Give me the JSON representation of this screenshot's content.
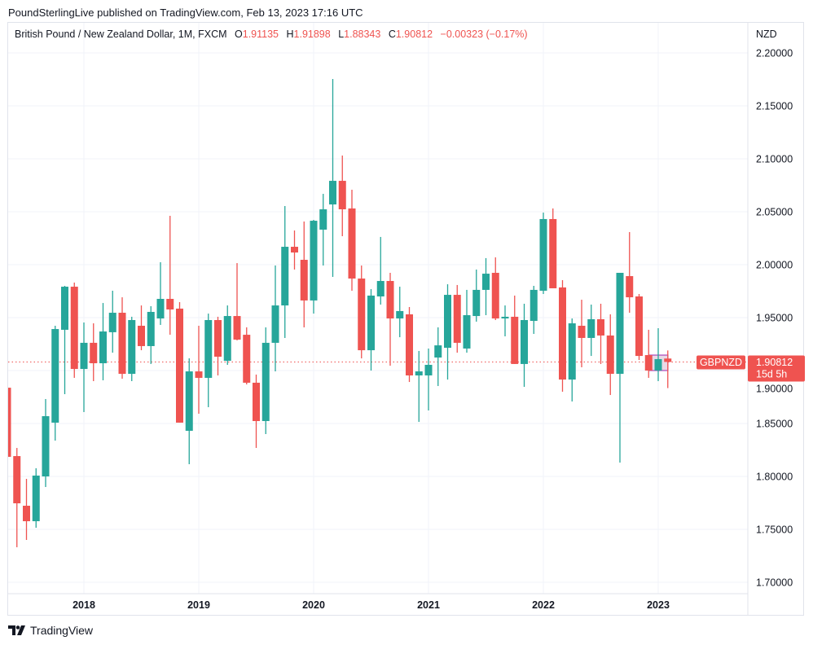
{
  "header": {
    "publisher_line": "PoundSterlingLive published on TradingView.com, Feb 13, 2023 17:16 UTC"
  },
  "legend": {
    "symbol_desc": "British Pound / New Zealand Dollar, 1M, FXCM",
    "o_label": "O",
    "o": "1.91135",
    "h_label": "H",
    "h": "1.91898",
    "l_label": "L",
    "l": "1.88343",
    "c_label": "C",
    "c": "1.90812",
    "change": "−0.00323 (−0.17%)"
  },
  "price_axis": {
    "currency": "NZD"
  },
  "last_price": {
    "symbol": "GBPNZD",
    "price": "1.90812",
    "countdown": "15d 5h"
  },
  "footer": {
    "brand": "TradingView"
  },
  "colors": {
    "up": "#26a69a",
    "down": "#ef5350",
    "grid": "#f0f3fa",
    "highlight_border": "#9c27b0"
  },
  "chart_data": {
    "type": "candlestick",
    "interval": "1M",
    "title": "British Pound / New Zealand Dollar, 1M, FXCM",
    "ylabel": "NZD",
    "ylim": [
      1.69,
      2.23
    ],
    "grid": true,
    "y_ticks": [
      "2.20000",
      "2.15000",
      "2.10000",
      "2.05000",
      "2.00000",
      "1.95000",
      "1.90000",
      "1.85000",
      "1.80000",
      "1.75000",
      "1.70000"
    ],
    "x_ticks": [
      "2018",
      "2019",
      "2020",
      "2021",
      "2022",
      "2023"
    ],
    "last_price_line": 1.90812,
    "columns": [
      "month",
      "open",
      "high",
      "low",
      "close"
    ],
    "candles": [
      [
        "2017-05",
        1.8838,
        1.8838,
        1.8185,
        1.8185
      ],
      [
        "2017-06",
        1.8192,
        1.8269,
        1.7331,
        1.7746
      ],
      [
        "2017-07",
        1.7723,
        1.7977,
        1.74,
        1.7577
      ],
      [
        "2017-08",
        1.7577,
        1.8077,
        1.7515,
        1.8008
      ],
      [
        "2017-09",
        1.8,
        1.8731,
        1.79,
        1.8569
      ],
      [
        "2017-10",
        1.8508,
        1.9423,
        1.8338,
        1.9392
      ],
      [
        "2017-11",
        1.9385,
        1.98,
        1.8777,
        1.9792
      ],
      [
        "2017-12",
        1.9792,
        1.9831,
        1.8931,
        1.9015
      ],
      [
        "2018-01",
        1.9015,
        1.9454,
        1.8608,
        1.9262
      ],
      [
        "2018-02",
        1.9262,
        1.9446,
        1.89,
        1.9069
      ],
      [
        "2018-03",
        1.9069,
        1.9638,
        1.8908,
        1.9369
      ],
      [
        "2018-04",
        1.9362,
        1.9754,
        1.9169,
        1.9546
      ],
      [
        "2018-05",
        1.9546,
        1.9692,
        1.8923,
        1.8969
      ],
      [
        "2018-06",
        1.8969,
        1.9508,
        1.89,
        1.9477
      ],
      [
        "2018-07",
        1.9423,
        1.9615,
        1.9192,
        1.9231
      ],
      [
        "2018-08",
        1.9231,
        1.9608,
        1.9062,
        1.9554
      ],
      [
        "2018-09",
        1.9492,
        2.0023,
        1.9431,
        1.9677
      ],
      [
        "2018-10",
        1.9677,
        2.0462,
        1.9338,
        1.9577
      ],
      [
        "2018-11",
        1.9585,
        1.9646,
        1.8508,
        1.8508
      ],
      [
        "2018-12",
        1.8431,
        1.9115,
        1.8115,
        1.8992
      ],
      [
        "2019-01",
        1.8992,
        1.9423,
        1.8592,
        1.8931
      ],
      [
        "2019-02",
        1.8931,
        1.9538,
        1.8654,
        1.9477
      ],
      [
        "2019-03",
        1.9477,
        1.9508,
        1.8954,
        1.9131
      ],
      [
        "2019-04",
        1.9092,
        1.9615,
        1.9054,
        1.9515
      ],
      [
        "2019-05",
        1.9515,
        2.0015,
        1.9285,
        1.9292
      ],
      [
        "2019-06",
        1.9338,
        1.9408,
        1.8869,
        1.8885
      ],
      [
        "2019-07",
        1.8885,
        1.8962,
        1.8269,
        1.8523
      ],
      [
        "2019-08",
        1.8523,
        1.9408,
        1.84,
        1.9262
      ],
      [
        "2019-09",
        1.9262,
        1.9992,
        1.8992,
        1.9615
      ],
      [
        "2019-10",
        1.9615,
        2.0554,
        1.9308,
        2.0169
      ],
      [
        "2019-11",
        2.0169,
        2.0323,
        1.9954,
        2.0115
      ],
      [
        "2019-12",
        2.0046,
        2.0408,
        1.9408,
        1.9662
      ],
      [
        "2020-01",
        1.9662,
        2.0423,
        1.9538,
        2.0415
      ],
      [
        "2020-02",
        2.0331,
        2.0669,
        1.9992,
        2.0523
      ],
      [
        "2020-03",
        2.0569,
        2.1754,
        1.9885,
        2.0792
      ],
      [
        "2020-04",
        2.0792,
        2.1031,
        2.0269,
        2.0523
      ],
      [
        "2020-05",
        2.0531,
        2.0708,
        1.9754,
        1.9869
      ],
      [
        "2020-06",
        1.9869,
        1.9992,
        1.9115,
        1.9192
      ],
      [
        "2020-07",
        1.9192,
        1.9769,
        1.9,
        1.9708
      ],
      [
        "2020-08",
        1.97,
        2.0262,
        1.9623,
        1.9846
      ],
      [
        "2020-09",
        1.9846,
        1.9923,
        1.9046,
        1.9492
      ],
      [
        "2020-10",
        1.9492,
        1.9792,
        1.9315,
        1.9562
      ],
      [
        "2020-11",
        1.9531,
        1.96,
        1.8892,
        1.8954
      ],
      [
        "2020-12",
        1.8954,
        1.9185,
        1.8515,
        1.8992
      ],
      [
        "2021-01",
        1.8954,
        1.9208,
        1.8623,
        1.9054
      ],
      [
        "2021-02",
        1.9123,
        1.9408,
        1.8854,
        1.9238
      ],
      [
        "2021-03",
        1.9215,
        1.9815,
        1.8915,
        1.9715
      ],
      [
        "2021-04",
        1.9715,
        1.9808,
        1.9169,
        1.9262
      ],
      [
        "2021-05",
        1.9208,
        1.9762,
        1.9169,
        1.9523
      ],
      [
        "2021-06",
        1.9515,
        1.9954,
        1.9462,
        1.9762
      ],
      [
        "2021-07",
        1.9762,
        2.0062,
        1.9523,
        1.9915
      ],
      [
        "2021-08",
        1.9923,
        2.0069,
        1.9477,
        1.9492
      ],
      [
        "2021-09",
        1.9492,
        1.9615,
        1.9323,
        1.9508
      ],
      [
        "2021-10",
        1.9508,
        1.9708,
        1.9062,
        1.9062
      ],
      [
        "2021-11",
        1.9062,
        1.9631,
        1.8846,
        1.9477
      ],
      [
        "2021-12",
        1.9469,
        1.98,
        1.9346,
        1.9762
      ],
      [
        "2022-01",
        1.9754,
        2.0492,
        1.9723,
        2.0431
      ],
      [
        "2022-02",
        2.0431,
        2.0531,
        1.9777,
        1.9777
      ],
      [
        "2022-03",
        1.9785,
        1.9854,
        1.88,
        1.8915
      ],
      [
        "2022-04",
        1.8915,
        1.9492,
        1.8708,
        1.9446
      ],
      [
        "2022-05",
        1.9423,
        1.9669,
        1.9031,
        1.9308
      ],
      [
        "2022-06",
        1.9308,
        1.9623,
        1.9138,
        1.9485
      ],
      [
        "2022-07",
        1.9485,
        1.9631,
        1.9062,
        1.9331
      ],
      [
        "2022-08",
        1.9331,
        1.9531,
        1.8769,
        1.8969
      ],
      [
        "2022-09",
        1.8969,
        1.9923,
        1.8131,
        1.9923
      ],
      [
        "2022-10",
        1.9892,
        2.0308,
        1.9546,
        1.9692
      ],
      [
        "2022-11",
        1.97,
        1.9723,
        1.91,
        1.9138
      ],
      [
        "2022-12",
        1.9146,
        1.9385,
        1.8931,
        1.9
      ],
      [
        "2023-01",
        1.9,
        1.94,
        1.89,
        1.9108
      ],
      [
        "2023-02",
        1.91135,
        1.91898,
        1.88343,
        1.90812
      ]
    ]
  }
}
